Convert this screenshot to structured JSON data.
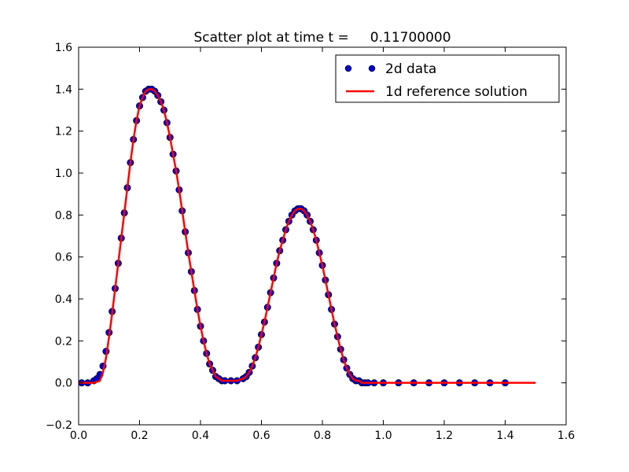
{
  "chart_data": {
    "type": "scatter",
    "title": "Scatter plot at time t =     0.11700000",
    "xlabel": "",
    "ylabel": "",
    "xlim": [
      0.0,
      1.6
    ],
    "ylim": [
      -0.2,
      1.6
    ],
    "xticks": [
      "0.0",
      "0.2",
      "0.4",
      "0.6",
      "0.8",
      "1.0",
      "1.2",
      "1.4",
      "1.6"
    ],
    "yticks": [
      "−0.2",
      "0.0",
      "0.2",
      "0.4",
      "0.6",
      "0.8",
      "1.0",
      "1.2",
      "1.4",
      "1.6"
    ],
    "grid": false,
    "legend_position": "top-right",
    "series": [
      {
        "name": "2d data",
        "kind": "scatter",
        "color": "#0000cc",
        "x": [
          0.01,
          0.03,
          0.05,
          0.06,
          0.07,
          0.08,
          0.09,
          0.1,
          0.11,
          0.12,
          0.13,
          0.14,
          0.15,
          0.16,
          0.17,
          0.18,
          0.19,
          0.2,
          0.21,
          0.22,
          0.23,
          0.24,
          0.25,
          0.26,
          0.27,
          0.28,
          0.29,
          0.3,
          0.31,
          0.32,
          0.33,
          0.34,
          0.35,
          0.36,
          0.37,
          0.38,
          0.39,
          0.4,
          0.41,
          0.42,
          0.43,
          0.44,
          0.45,
          0.46,
          0.47,
          0.48,
          0.5,
          0.52,
          0.54,
          0.55,
          0.56,
          0.57,
          0.58,
          0.59,
          0.6,
          0.61,
          0.62,
          0.63,
          0.64,
          0.65,
          0.66,
          0.67,
          0.68,
          0.69,
          0.7,
          0.71,
          0.72,
          0.73,
          0.74,
          0.75,
          0.76,
          0.77,
          0.78,
          0.79,
          0.8,
          0.81,
          0.82,
          0.83,
          0.84,
          0.85,
          0.86,
          0.87,
          0.88,
          0.89,
          0.9,
          0.91,
          0.92,
          0.93,
          0.94,
          0.95,
          0.97,
          1.0,
          1.05,
          1.1,
          1.15,
          1.2,
          1.25,
          1.3,
          1.35,
          1.4
        ],
        "y": [
          0.0,
          0.0,
          0.01,
          0.02,
          0.04,
          0.08,
          0.15,
          0.24,
          0.34,
          0.45,
          0.57,
          0.69,
          0.81,
          0.93,
          1.05,
          1.16,
          1.25,
          1.32,
          1.36,
          1.39,
          1.4,
          1.4,
          1.39,
          1.37,
          1.34,
          1.3,
          1.24,
          1.17,
          1.09,
          1.01,
          0.92,
          0.82,
          0.72,
          0.62,
          0.53,
          0.44,
          0.35,
          0.27,
          0.2,
          0.14,
          0.09,
          0.06,
          0.03,
          0.02,
          0.01,
          0.01,
          0.01,
          0.01,
          0.02,
          0.03,
          0.05,
          0.08,
          0.12,
          0.17,
          0.23,
          0.29,
          0.36,
          0.43,
          0.5,
          0.57,
          0.63,
          0.68,
          0.73,
          0.77,
          0.8,
          0.82,
          0.83,
          0.83,
          0.82,
          0.8,
          0.77,
          0.73,
          0.68,
          0.62,
          0.56,
          0.49,
          0.42,
          0.35,
          0.28,
          0.22,
          0.16,
          0.11,
          0.07,
          0.04,
          0.02,
          0.01,
          0.01,
          0.0,
          0.0,
          0.0,
          0.0,
          0.0,
          0.0,
          0.0,
          0.0,
          0.0,
          0.0,
          0.0,
          0.0,
          0.0
        ]
      },
      {
        "name": "1d reference solution",
        "kind": "line",
        "color": "#ff0000",
        "x": [
          0.0,
          0.05,
          0.07,
          0.08,
          0.09,
          0.1,
          0.11,
          0.12,
          0.13,
          0.14,
          0.15,
          0.16,
          0.17,
          0.18,
          0.19,
          0.2,
          0.21,
          0.22,
          0.23,
          0.24,
          0.25,
          0.26,
          0.27,
          0.28,
          0.29,
          0.3,
          0.31,
          0.32,
          0.33,
          0.34,
          0.35,
          0.36,
          0.37,
          0.38,
          0.39,
          0.4,
          0.41,
          0.42,
          0.43,
          0.44,
          0.45,
          0.46,
          0.47,
          0.48,
          0.5,
          0.52,
          0.54,
          0.55,
          0.56,
          0.57,
          0.58,
          0.59,
          0.6,
          0.61,
          0.62,
          0.63,
          0.64,
          0.65,
          0.66,
          0.67,
          0.68,
          0.69,
          0.7,
          0.71,
          0.72,
          0.73,
          0.74,
          0.75,
          0.76,
          0.77,
          0.78,
          0.79,
          0.8,
          0.81,
          0.82,
          0.83,
          0.84,
          0.85,
          0.86,
          0.87,
          0.88,
          0.89,
          0.9,
          0.91,
          0.92,
          0.93,
          0.94,
          0.95,
          1.0,
          1.5
        ],
        "y": [
          0.0,
          0.0,
          0.01,
          0.05,
          0.12,
          0.22,
          0.33,
          0.45,
          0.57,
          0.69,
          0.81,
          0.93,
          1.05,
          1.16,
          1.25,
          1.32,
          1.36,
          1.39,
          1.4,
          1.4,
          1.39,
          1.37,
          1.34,
          1.3,
          1.24,
          1.17,
          1.09,
          1.01,
          0.92,
          0.82,
          0.72,
          0.62,
          0.53,
          0.44,
          0.35,
          0.27,
          0.2,
          0.14,
          0.09,
          0.06,
          0.03,
          0.02,
          0.01,
          0.01,
          0.01,
          0.01,
          0.02,
          0.03,
          0.05,
          0.08,
          0.12,
          0.17,
          0.23,
          0.29,
          0.36,
          0.43,
          0.5,
          0.57,
          0.63,
          0.68,
          0.73,
          0.77,
          0.8,
          0.82,
          0.83,
          0.83,
          0.82,
          0.8,
          0.77,
          0.73,
          0.68,
          0.62,
          0.56,
          0.49,
          0.42,
          0.35,
          0.28,
          0.22,
          0.16,
          0.11,
          0.07,
          0.04,
          0.02,
          0.01,
          0.01,
          0.0,
          0.0,
          0.0,
          0.0,
          0.0
        ]
      }
    ]
  }
}
